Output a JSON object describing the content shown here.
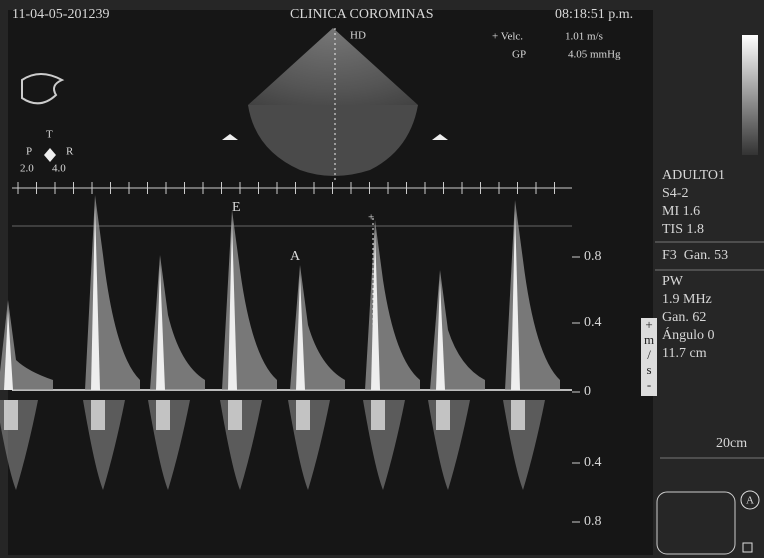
{
  "header": {
    "id": "11-04-05-201239",
    "clinic": "CLINICA COROMINAS",
    "time": "08:18:51 p.m."
  },
  "image": {
    "mode": "HD",
    "velocity_label": "+ Velc.",
    "velocity": "1.01 m/s",
    "gradient_label": "GP",
    "gradient": "4.05 mmHg"
  },
  "orientation": {
    "top": "T",
    "left": "P",
    "right": "R",
    "depth_min": "2.0",
    "depth_max": "4.0"
  },
  "panel": {
    "preset": "ADULTO1",
    "probe": "S4-2",
    "mi": "MI 1.6",
    "tis": "TIS 1.8",
    "gain_2d": "F3  Gan. 53",
    "mode": "PW",
    "frequency": "1.9 MHz",
    "gain": "Gan. 62",
    "angle": "Ángulo 0",
    "depth": "11.7 cm",
    "scale_depth": "20cm"
  },
  "waveform": {
    "e_label": "E",
    "a_label": "A"
  },
  "scale": {
    "labels": [
      "0.8",
      "0.4",
      "0",
      "0.4",
      "0.8"
    ],
    "unit": [
      "+",
      "m",
      "/",
      "s",
      "-"
    ]
  },
  "footer": {
    "button": "A"
  }
}
